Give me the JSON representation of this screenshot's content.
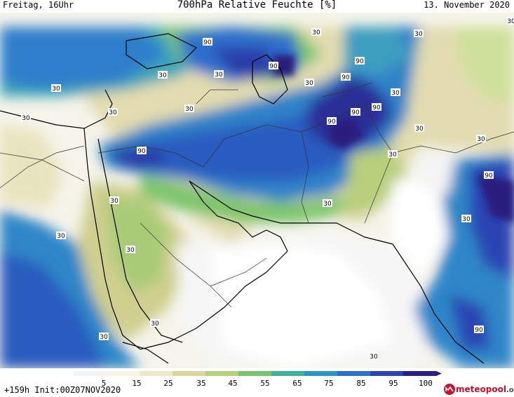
{
  "header": {
    "valid_time": "Freitag, 16Uhr",
    "title": "700hPa Relative Feuchte [%]",
    "date": "13. November 2020"
  },
  "footer": {
    "run_info": "+159h Init:00Z07NOV2020",
    "logo_text": "meteopool",
    "logo_suffix": ".org"
  },
  "colorbar": {
    "ticks": [
      "5",
      "15",
      "25",
      "35",
      "45",
      "55",
      "65",
      "75",
      "85",
      "95",
      "100"
    ],
    "colors": [
      "#f4f4f4",
      "#f7f5e6",
      "#ede8c6",
      "#d9d79c",
      "#b6cf7a",
      "#79c46c",
      "#3fb199",
      "#2b97c6",
      "#2d70cc",
      "#2b44b3",
      "#2a2283",
      "#3a1669"
    ]
  },
  "map": {
    "contour_labels": [
      {
        "text": "90"
      },
      {
        "text": "90"
      },
      {
        "text": "90"
      },
      {
        "text": "90"
      },
      {
        "text": "90"
      },
      {
        "text": "90"
      },
      {
        "text": "90"
      },
      {
        "text": "90"
      },
      {
        "text": "90"
      },
      {
        "text": "90"
      },
      {
        "text": "30"
      },
      {
        "text": "30"
      },
      {
        "text": "30"
      },
      {
        "text": "30"
      },
      {
        "text": "30"
      },
      {
        "text": "30"
      },
      {
        "text": "30"
      },
      {
        "text": "30"
      },
      {
        "text": "30"
      },
      {
        "text": "30"
      },
      {
        "text": "30"
      },
      {
        "text": "30"
      },
      {
        "text": "30"
      },
      {
        "text": "30"
      },
      {
        "text": "30"
      },
      {
        "text": "30"
      },
      {
        "text": "30"
      },
      {
        "text": "30"
      },
      {
        "text": "30"
      },
      {
        "text": "30"
      },
      {
        "text": "30"
      },
      {
        "text": "30"
      }
    ]
  }
}
